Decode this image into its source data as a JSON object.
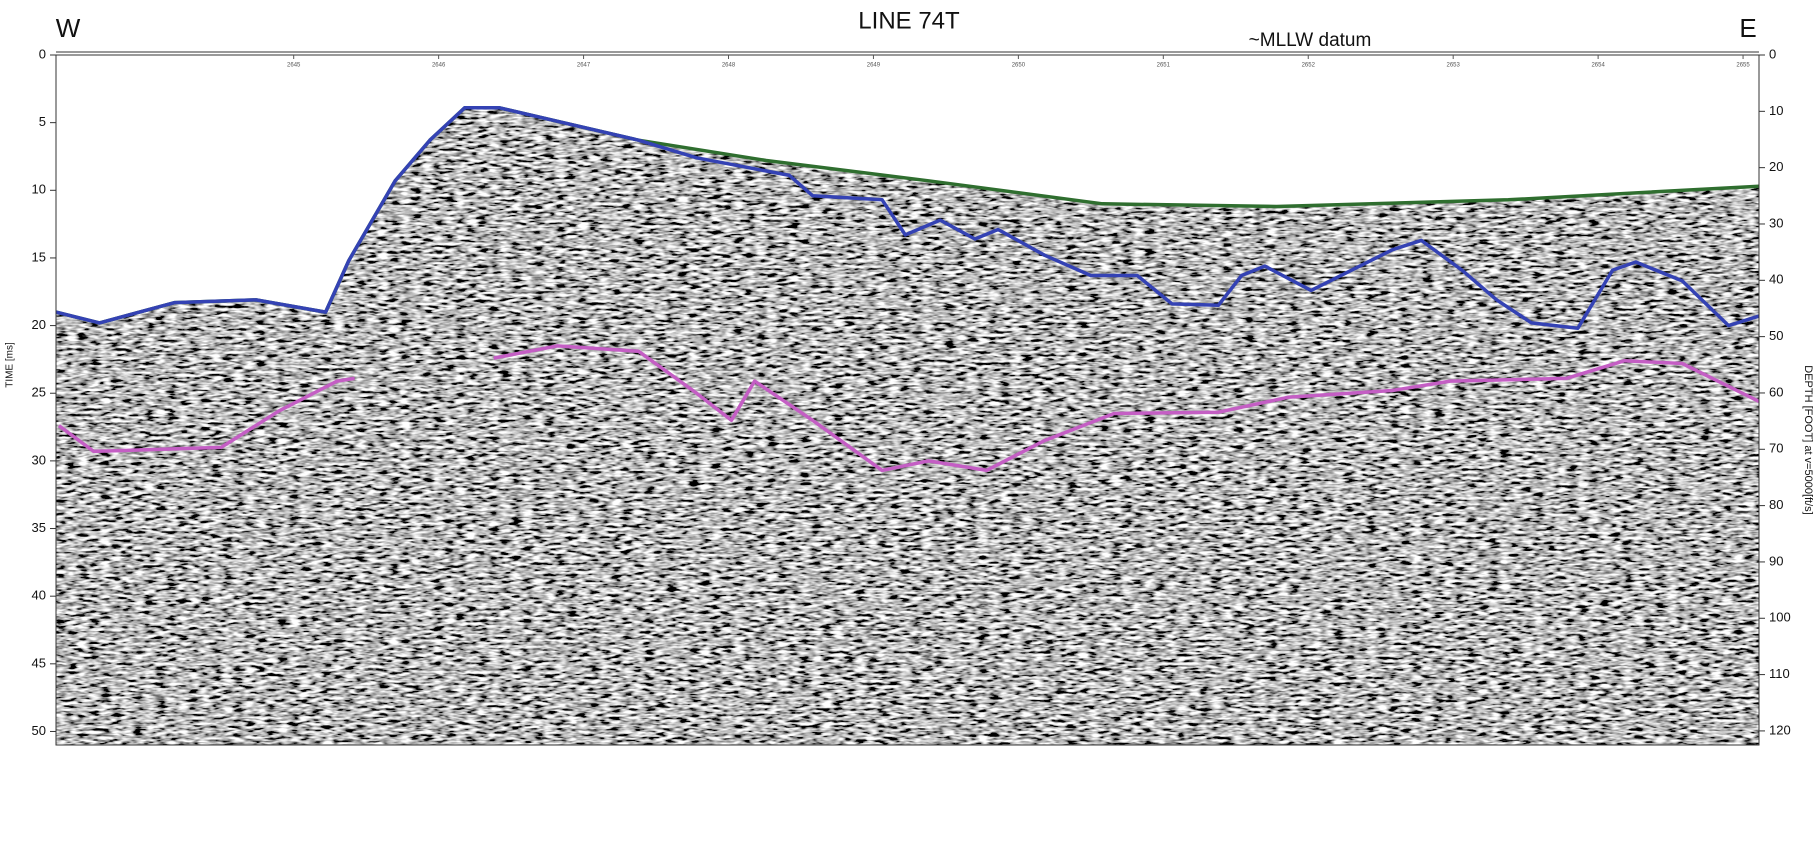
{
  "chart_data": {
    "type": "line",
    "title": "LINE 74T",
    "annotations": {
      "west": "W",
      "east": "E",
      "datum": "~MLLW datum"
    },
    "ylabel": "TIME [ms]",
    "y2label": "DEPTH [FOOT] at v=5000[ft/s]",
    "xlim": [
      2643.36,
      2655.11
    ],
    "xticks": [
      2645,
      2646,
      2647,
      2648,
      2649,
      2650,
      2651,
      2652,
      2653,
      2654,
      2655
    ],
    "ylim": [
      0,
      51
    ],
    "yticks": [
      0,
      5,
      10,
      15,
      20,
      25,
      30,
      35,
      40,
      45,
      50
    ],
    "y2lim": [
      0,
      122.5
    ],
    "y2ticks": [
      0,
      10,
      20,
      30,
      40,
      50,
      60,
      70,
      80,
      90,
      100,
      110,
      120
    ],
    "y_inverted": true,
    "series": [
      {
        "color": "#2f6e2f",
        "x": [
          2643.36,
          2643.66,
          2644.18,
          2644.74,
          2645.22,
          2645.38,
          2645.7,
          2645.94,
          2646.18,
          2646.42,
          2647.38,
          2648.26,
          2649.38,
          2650.58,
          2651.78,
          2653.38,
          2655.11
        ],
        "values": [
          19.0,
          19.8,
          18.3,
          18.1,
          19.0,
          15.2,
          9.3,
          6.3,
          3.9,
          3.9,
          6.3,
          7.8,
          9.3,
          11.0,
          11.2,
          10.7,
          9.7
        ]
      },
      {
        "color": "#3442b4",
        "x": [
          2643.36,
          2643.66,
          2644.18,
          2644.74,
          2645.22,
          2645.38,
          2645.7,
          2645.94,
          2646.18,
          2646.42,
          2647.38,
          2647.78,
          2648.42,
          2648.58,
          2649.06,
          2649.22,
          2649.46,
          2649.7,
          2649.86,
          2650.18,
          2650.5,
          2650.82,
          2651.06,
          2651.38,
          2651.54,
          2651.7,
          2652.02,
          2652.58,
          2652.78,
          2653.06,
          2653.3,
          2653.54,
          2653.86,
          2654.1,
          2654.26,
          2654.58,
          2654.9,
          2655.11
        ],
        "values": [
          19.0,
          19.8,
          18.3,
          18.1,
          19.0,
          15.2,
          9.3,
          6.3,
          3.9,
          3.9,
          6.3,
          7.6,
          8.9,
          10.4,
          10.7,
          13.3,
          12.2,
          13.6,
          12.9,
          14.8,
          16.3,
          16.3,
          18.4,
          18.5,
          16.3,
          15.6,
          17.4,
          14.4,
          13.7,
          15.9,
          18.1,
          19.8,
          20.2,
          15.9,
          15.3,
          16.7,
          20.0,
          19.3
        ]
      },
      {
        "color": "#c45ec4",
        "x": [
          2643.38,
          2643.62,
          2644.5,
          2644.9,
          2645.3,
          2645.42,
          null,
          2646.38,
          2646.82,
          2647.38,
          2647.78,
          2648.02,
          2648.18,
          2648.58,
          2649.06,
          2649.38,
          2649.78,
          2650.18,
          2650.66,
          2651.38,
          2651.86,
          2652.58,
          2652.98,
          2653.78,
          2654.18,
          2654.58,
          2655.11
        ],
        "values": [
          27.4,
          29.3,
          29.0,
          26.3,
          24.1,
          23.9,
          null,
          22.4,
          21.5,
          21.9,
          25.0,
          27.0,
          24.1,
          27.0,
          30.7,
          30.0,
          30.7,
          28.5,
          26.5,
          26.4,
          25.3,
          24.8,
          24.1,
          23.9,
          22.6,
          22.8,
          25.6
        ]
      }
    ]
  }
}
